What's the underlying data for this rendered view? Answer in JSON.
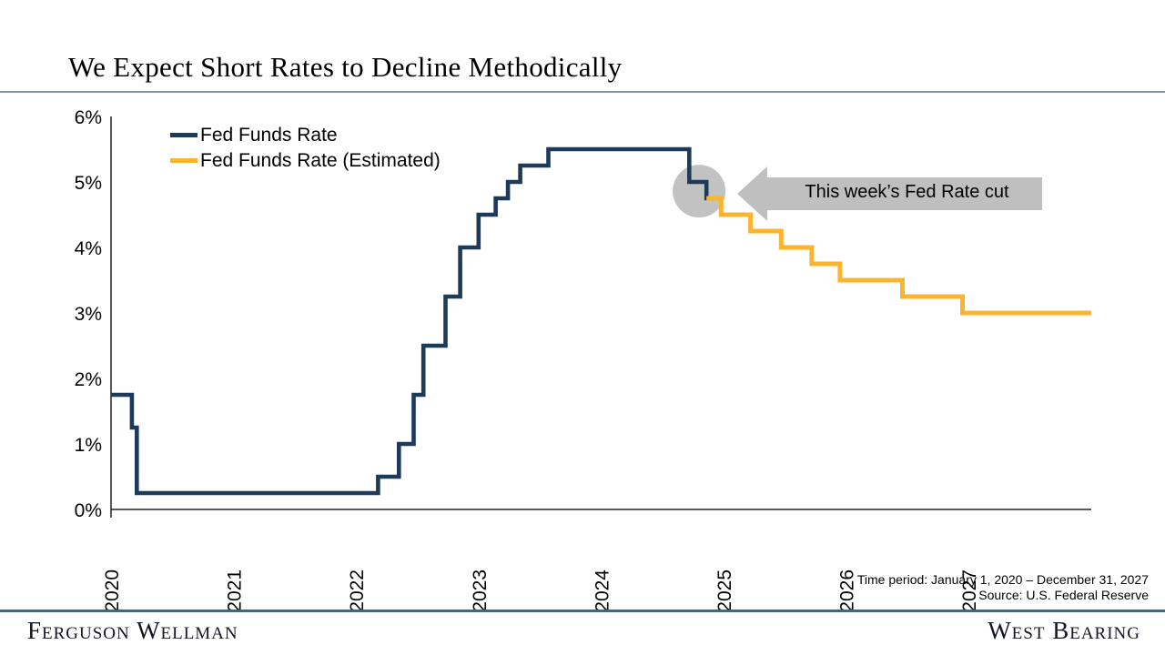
{
  "page": {
    "title": "We Expect Short Rates to Decline Methodically"
  },
  "legend": [
    {
      "label": "Fed Funds Rate",
      "color": "#1e3a59"
    },
    {
      "label": "Fed Funds Rate (Estimated)",
      "color": "#fbb42c"
    }
  ],
  "annotation": {
    "text": "This week’s Fed Rate cut",
    "arrow_color": "#bfbfbf",
    "circle_color": "#c2c2c2"
  },
  "footnote": {
    "time_period": "Time period: January 1, 2020 – December 31, 2027",
    "source": "Source: U.S. Federal Reserve"
  },
  "footer": {
    "left_logo": "Ferguson Wellman",
    "right_logo": "West Bearing"
  },
  "chart_data": {
    "type": "line",
    "step": true,
    "title": "",
    "xlabel": "",
    "ylabel": "",
    "xlim": [
      2020,
      2028
    ],
    "ylim": [
      0,
      6
    ],
    "grid": false,
    "x_ticks": [
      "2020",
      "2021",
      "2022",
      "2023",
      "2024",
      "2025",
      "2026",
      "2027"
    ],
    "y_ticks": [
      "6%",
      "5%",
      "4%",
      "3%",
      "2%",
      "1%",
      "0%"
    ],
    "y_tick_values": [
      6,
      5,
      4,
      3,
      2,
      1,
      0
    ],
    "legend_position": "top-left",
    "series": [
      {
        "name": "Fed Funds Rate",
        "color": "#1e3a59",
        "x_end": 2024.88,
        "points": [
          [
            2020.0,
            1.75
          ],
          [
            2020.17,
            1.25
          ],
          [
            2020.21,
            0.25
          ],
          [
            2022.18,
            0.5
          ],
          [
            2022.35,
            1.0
          ],
          [
            2022.47,
            1.75
          ],
          [
            2022.55,
            2.5
          ],
          [
            2022.73,
            3.25
          ],
          [
            2022.85,
            4.0
          ],
          [
            2023.0,
            4.5
          ],
          [
            2023.14,
            4.75
          ],
          [
            2023.24,
            5.0
          ],
          [
            2023.34,
            5.25
          ],
          [
            2023.57,
            5.5
          ],
          [
            2024.72,
            5.0
          ],
          [
            2024.86,
            4.75
          ]
        ]
      },
      {
        "name": "Fed Funds Rate (Estimated)",
        "color": "#fbb42c",
        "x_end": 2028.0,
        "points": [
          [
            2024.86,
            4.75
          ],
          [
            2024.98,
            4.5
          ],
          [
            2025.22,
            4.25
          ],
          [
            2025.47,
            4.0
          ],
          [
            2025.72,
            3.75
          ],
          [
            2025.95,
            3.5
          ],
          [
            2026.46,
            3.25
          ],
          [
            2026.95,
            3.0
          ]
        ]
      }
    ],
    "highlight": {
      "x": 2024.8,
      "y": 4.86,
      "radius_px": 29
    }
  }
}
